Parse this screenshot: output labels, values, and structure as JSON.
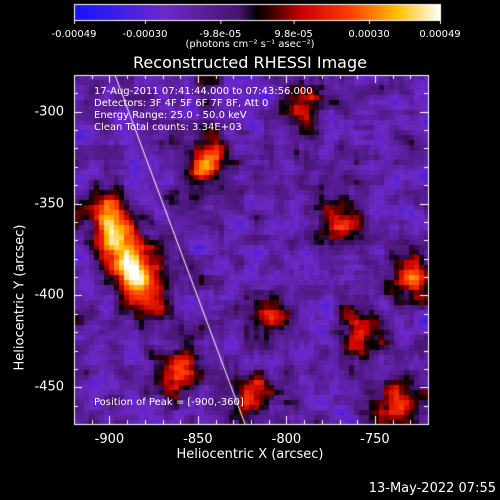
{
  "chart_data": {
    "type": "heatmap",
    "title": "Reconstructed RHESSI Image",
    "colorbar": {
      "ticks": [
        "-0.00049",
        "-0.00030",
        "-9.8e-05",
        "9.8e-05",
        "0.00030",
        "0.00049"
      ],
      "range": [
        -0.00049,
        0.00049
      ],
      "unit_label": "(photons cm⁻² s⁻¹ asec⁻²)"
    },
    "xlabel": "Heliocentric X (arcsec)",
    "ylabel": "Heliocentric Y (arcsec)",
    "xlim": [
      -920,
      -720
    ],
    "ylim": [
      -470,
      -280
    ],
    "xticks": [
      "-900",
      "-850",
      "-800",
      "-750"
    ],
    "yticks": [
      "-300",
      "-350",
      "-400",
      "-450"
    ],
    "info_lines": [
      "17-Aug-2011 07:41:44.000 to 07:43:56.000",
      "Detectors: 3F 4F 5F 6F 7F 8F, Att 0",
      "Energy Range: 25.0 - 50.0 keV",
      "Clean    Total counts: 3.34E+03"
    ],
    "peak_label": "Position of Peak = [-900,-360]",
    "peak": [
      -900,
      -360
    ],
    "sources": [
      {
        "x": -900,
        "y": -360,
        "amp": 1.0
      },
      {
        "x": -880,
        "y": -395,
        "amp": 0.95
      },
      {
        "x": -890,
        "y": -380,
        "amp": 0.8
      },
      {
        "x": -860,
        "y": -440,
        "amp": 0.65
      },
      {
        "x": -845,
        "y": -325,
        "amp": 0.8
      },
      {
        "x": -770,
        "y": -360,
        "amp": 0.6
      },
      {
        "x": -730,
        "y": -390,
        "amp": 0.55
      },
      {
        "x": -740,
        "y": -460,
        "amp": 0.65
      },
      {
        "x": -810,
        "y": -410,
        "amp": 0.5
      },
      {
        "x": -760,
        "y": -420,
        "amp": 0.5
      },
      {
        "x": -820,
        "y": -455,
        "amp": 0.6
      },
      {
        "x": -790,
        "y": -295,
        "amp": 0.4
      }
    ]
  },
  "footer": {
    "date": "13-May-2022 07:55"
  }
}
